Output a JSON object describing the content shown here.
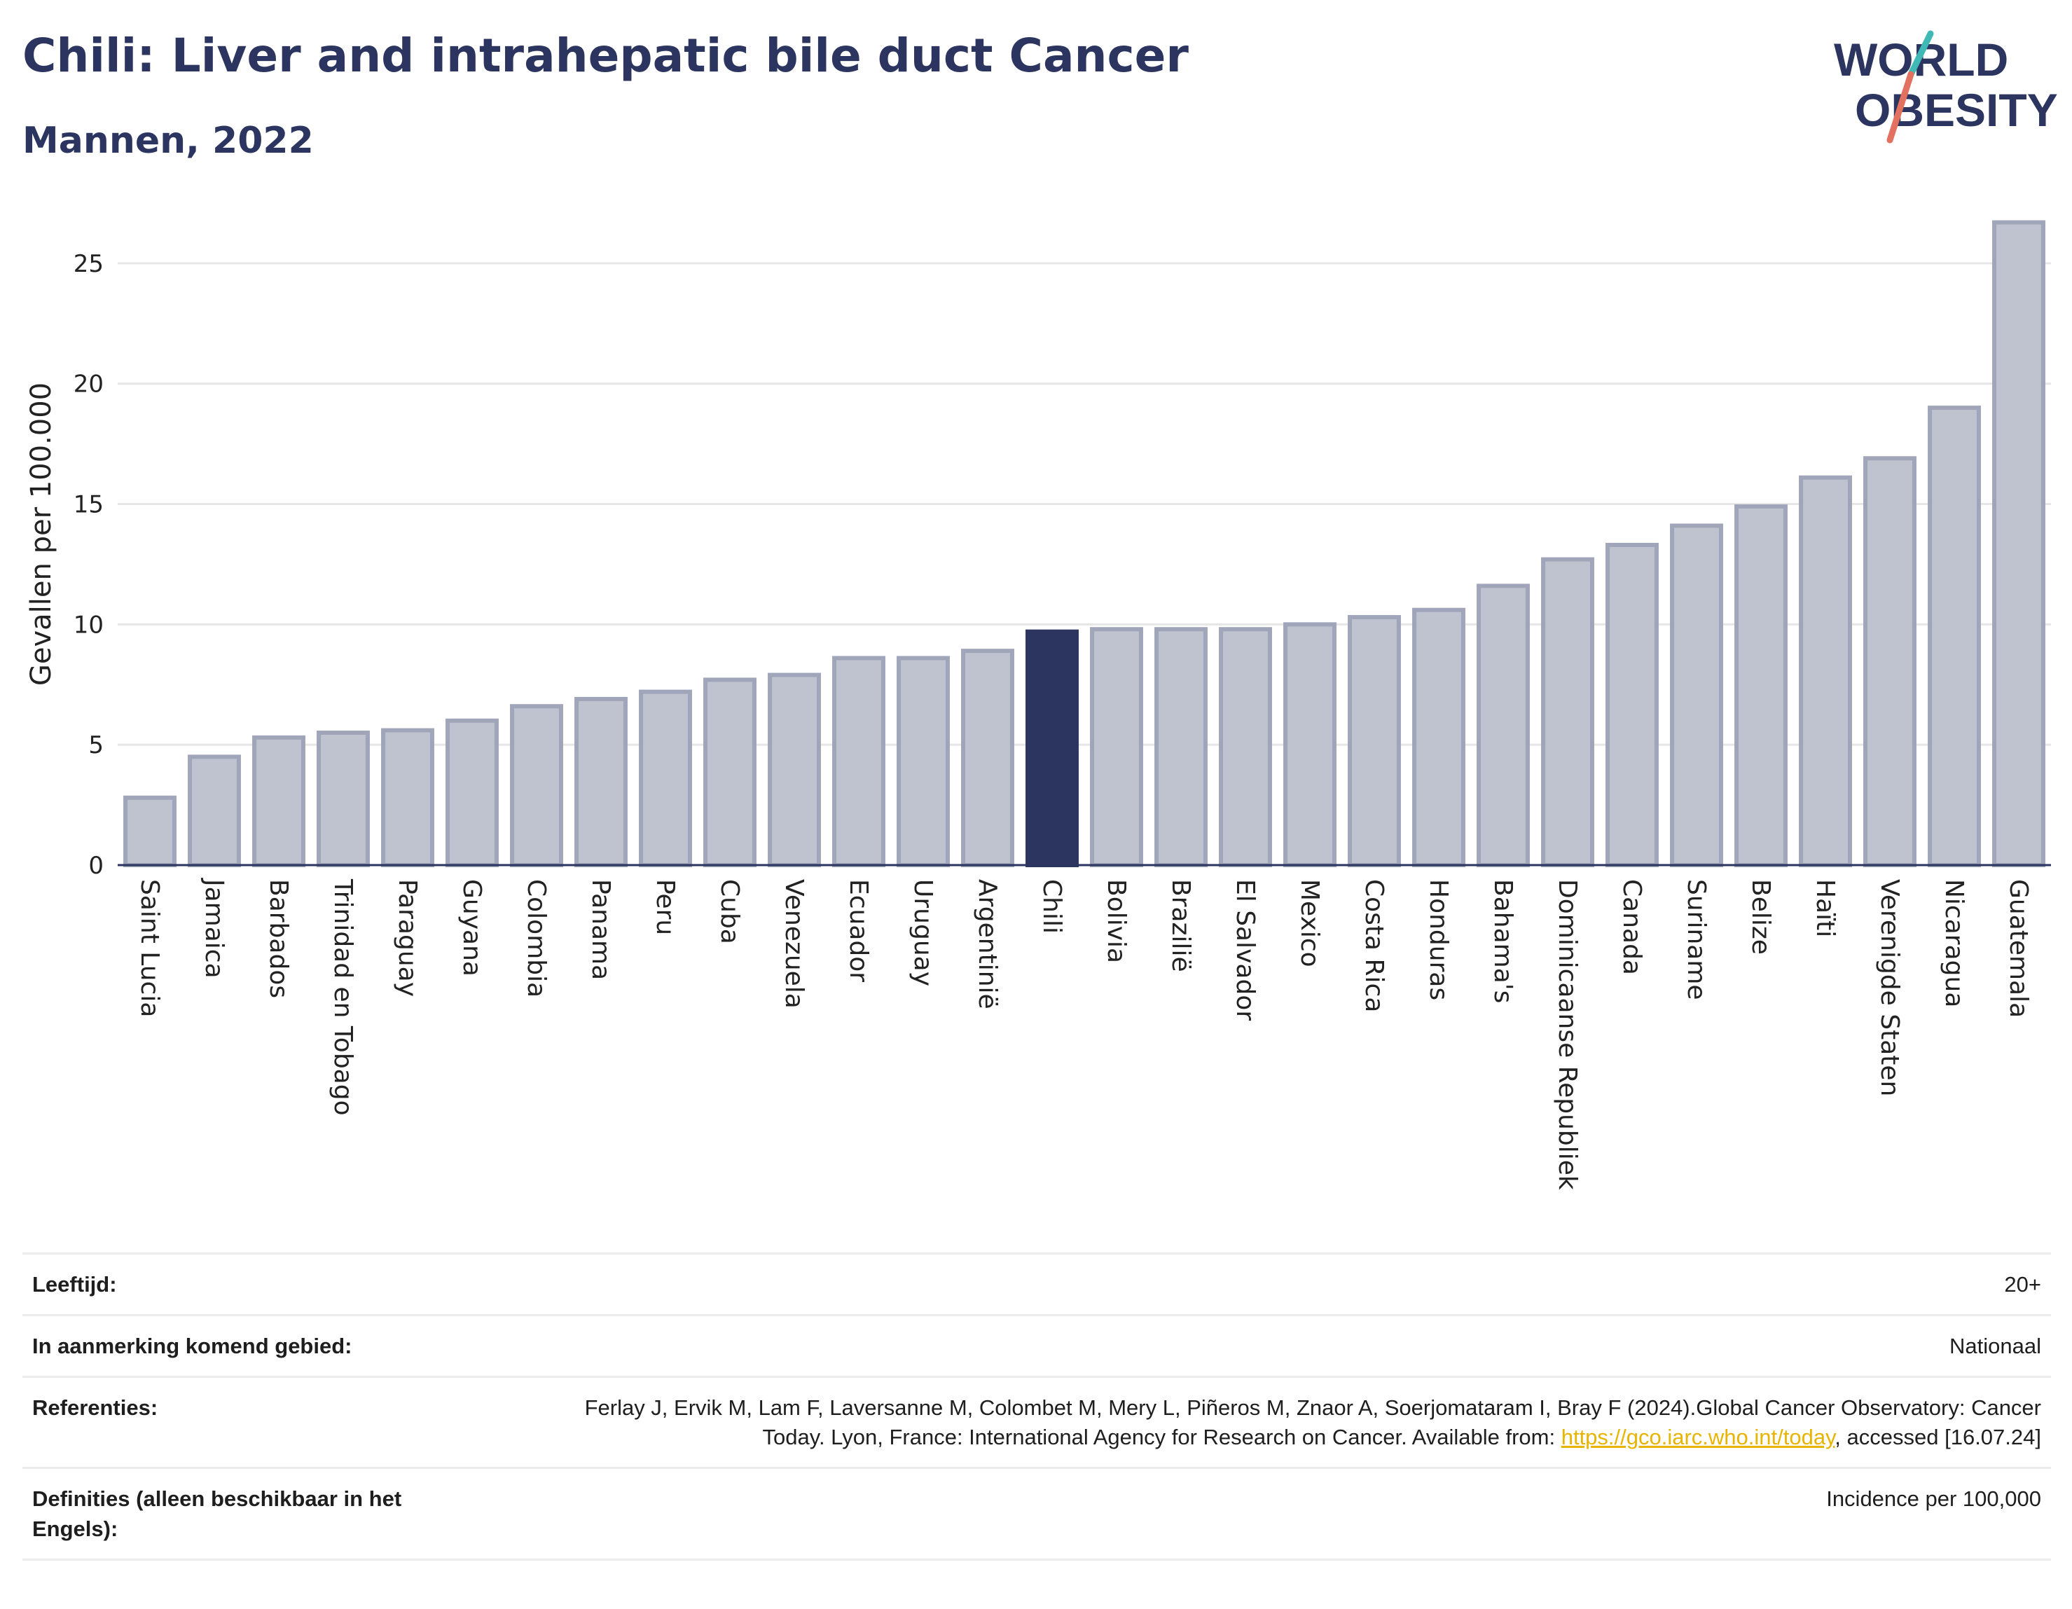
{
  "header": {
    "title": "Chili: Liver and intrahepatic bile duct Cancer",
    "subtitle": "Mannen, 2022"
  },
  "logo": {
    "line1": "WORLD",
    "line2": "OBESITY"
  },
  "colors": {
    "bar": "#bfc2cf",
    "bar_stroke": "#a0a5ba",
    "highlight": "#2c3560",
    "title": "#2c3560",
    "grid": "#e6e6e6",
    "logo_teal": "#3fb8b6",
    "logo_coral": "#e2725f",
    "link": "#e8b400"
  },
  "chart_data": {
    "type": "bar",
    "ylabel": "Gevallen per 100.000",
    "ylim": [
      0,
      27.5
    ],
    "yticks": [
      0,
      5,
      10,
      15,
      20,
      25
    ],
    "grid": true,
    "highlight": "Chili",
    "categories": [
      "Saint Lucia",
      "Jamaica",
      "Barbados",
      "Trinidad en Tobago",
      "Paraguay",
      "Guyana",
      "Colombia",
      "Panama",
      "Peru",
      "Cuba",
      "Venezuela",
      "Ecuador",
      "Uruguay",
      "Argentinië",
      "Chili",
      "Bolivia",
      "Brazilië",
      "El Salvador",
      "Mexico",
      "Costa Rica",
      "Honduras",
      "Bahama's",
      "Dominicaanse Republiek",
      "Canada",
      "Suriname",
      "Belize",
      "Haïti",
      "Verenigde Staten",
      "Nicaragua",
      "Guatemala"
    ],
    "values": [
      2.8,
      4.5,
      5.3,
      5.5,
      5.6,
      6.0,
      6.6,
      6.9,
      7.2,
      7.7,
      7.9,
      8.6,
      8.6,
      8.9,
      9.7,
      9.8,
      9.8,
      9.8,
      10.0,
      10.3,
      10.6,
      11.6,
      12.7,
      13.3,
      14.1,
      14.9,
      16.1,
      16.9,
      19.0,
      26.7
    ]
  },
  "info": {
    "age_label": "Leeftijd:",
    "age_value": "20+",
    "area_label": "In aanmerking komend gebied:",
    "area_value": "Nationaal",
    "ref_label": "Referenties:",
    "ref_text_1": "Ferlay J, Ervik M, Lam F, Laversanne M, Colombet M, Mery L, Piñeros M, Znaor A, Soerjomataram I, Bray F (2024).Global Cancer Observatory: Cancer Today. Lyon, France: International Agency for Research on Cancer. Available from: ",
    "ref_link": "https://gco.iarc.who.int/today",
    "ref_text_2": ", accessed [16.07.24]",
    "def_label": "Definities (alleen beschikbaar in het Engels):",
    "def_value": "Incidence per 100,000"
  }
}
